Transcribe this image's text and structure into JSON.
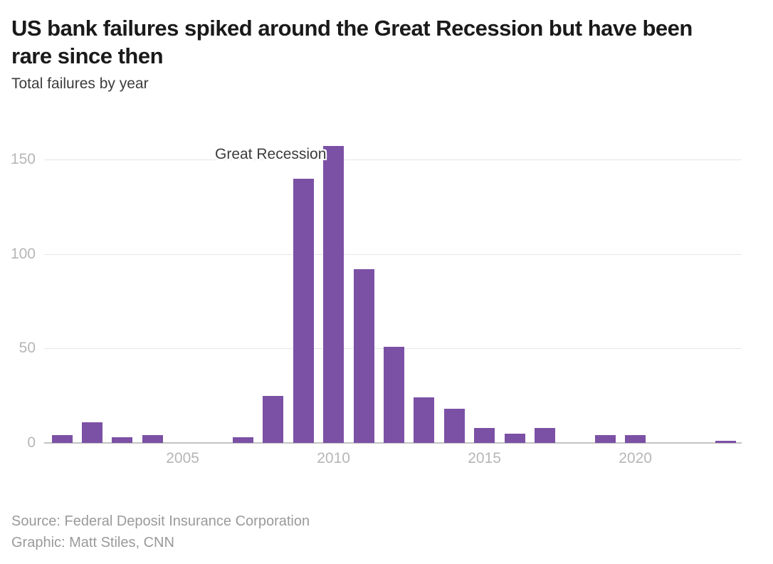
{
  "header": {
    "title": "US bank failures spiked around the Great Recession but have been rare since then",
    "subtitle": "Total failures by year"
  },
  "chart_data": {
    "type": "bar",
    "title": "US bank failures spiked around the Great Recession but have been rare since then",
    "subtitle": "Total failures by year",
    "categories": [
      2001,
      2002,
      2003,
      2004,
      2005,
      2006,
      2007,
      2008,
      2009,
      2010,
      2011,
      2012,
      2013,
      2014,
      2015,
      2016,
      2017,
      2018,
      2019,
      2020,
      2021,
      2022,
      2023
    ],
    "values": [
      4,
      11,
      3,
      4,
      0,
      0,
      3,
      25,
      140,
      157,
      92,
      51,
      24,
      18,
      8,
      5,
      8,
      0,
      4,
      4,
      0,
      0,
      1
    ],
    "xticks": [
      2005,
      2010,
      2015,
      2020
    ],
    "yticks": [
      0,
      50,
      100,
      150
    ],
    "ylim": [
      0,
      157
    ],
    "xlabel": "",
    "ylabel": "",
    "annotation": "Great Recession",
    "legend": "none",
    "grid": "horizontal",
    "bar_color": "#7b51a5",
    "gridline_color": "#e6e6e6",
    "axis_line_color": "#c4c4c4",
    "tick_label_color": "#b6b6b6"
  },
  "footer": {
    "source": "Source: Federal Deposit Insurance Corporation",
    "credit": "Graphic: Matt Stiles, CNN"
  }
}
